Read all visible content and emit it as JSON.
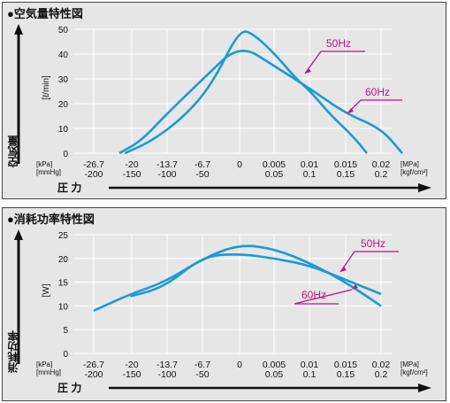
{
  "chart_data": [
    {
      "type": "line",
      "title": "●空気量特性図",
      "ylabel": "空気量",
      "yunit": "[ℓ/min]",
      "xlabel": "圧 力",
      "x_units": [
        "[kPa]",
        "[mmHg]"
      ],
      "x_units_right": [
        "[MPa]",
        "[kgf/cm²]"
      ],
      "x_ticks_row1": [
        "-26.7",
        "-20",
        "-13.7",
        "-6.7",
        "0",
        "0.005",
        "0.01",
        "0.015",
        "0.02"
      ],
      "x_ticks_row2": [
        "-200",
        "-150",
        "-100",
        "-50",
        "",
        "0.05",
        "0.1",
        "0.15",
        "0.2"
      ],
      "y_ticks": [
        "0",
        "10",
        "20",
        "30",
        "40",
        "50"
      ],
      "ylim": [
        0,
        50
      ],
      "xlim": [
        -26.7,
        0.02
      ],
      "series": [
        {
          "name": "50Hz",
          "color": "#1a9ad6",
          "points": [
            [
              -21,
              0
            ],
            [
              -16,
              5
            ],
            [
              -10,
              15
            ],
            [
              -5,
              28
            ],
            [
              0,
              50
            ],
            [
              0.002,
              48
            ],
            [
              0.005,
              40
            ],
            [
              0.008,
              30
            ],
            [
              0.01,
              25
            ],
            [
              0.013,
              15
            ],
            [
              0.016,
              7
            ],
            [
              0.018,
              0
            ]
          ]
        },
        {
          "name": "60Hz",
          "color": "#1a9ad6",
          "points": [
            [
              -22,
              0
            ],
            [
              -18,
              5
            ],
            [
              -13.7,
              15
            ],
            [
              -6.7,
              30
            ],
            [
              0,
              44
            ],
            [
              0.005,
              35
            ],
            [
              0.01,
              26
            ],
            [
              0.015,
              16
            ],
            [
              0.02,
              10
            ],
            [
              0.023,
              0
            ]
          ]
        }
      ]
    },
    {
      "type": "line",
      "title": "●消耗功率特性図",
      "ylabel": "消耗功率",
      "yunit": "[W]",
      "xlabel": "圧 力",
      "x_units": [
        "[kPa]",
        "[mmHg]"
      ],
      "x_units_right": [
        "[MPa]",
        "[kgf/cm²]"
      ],
      "x_ticks_row1": [
        "-26.7",
        "-20",
        "-13.7",
        "-6.7",
        "0",
        "0.005",
        "0.01",
        "0.015",
        "0.02"
      ],
      "x_ticks_row2": [
        "-200",
        "-150",
        "-100",
        "-50",
        "",
        "0.05",
        "0.1",
        "0.15",
        "0.2"
      ],
      "y_ticks": [
        "0",
        "5",
        "10",
        "15",
        "20",
        "25"
      ],
      "ylim": [
        0,
        25
      ],
      "series": [
        {
          "name": "50Hz",
          "color": "#1a9ad6",
          "points": [
            [
              -26.7,
              9
            ],
            [
              -20,
              12.5
            ],
            [
              -13.7,
              15
            ],
            [
              -6.7,
              20
            ],
            [
              0,
              23
            ],
            [
              0.005,
              22
            ],
            [
              0.01,
              19
            ],
            [
              0.015,
              15
            ],
            [
              0.02,
              10
            ]
          ]
        },
        {
          "name": "60Hz",
          "color": "#1a9ad6",
          "points": [
            [
              -20,
              12
            ],
            [
              -13.7,
              14
            ],
            [
              -6.7,
              20.5
            ],
            [
              0,
              21
            ],
            [
              0.005,
              20
            ],
            [
              0.01,
              18.5
            ],
            [
              0.015,
              15.5
            ],
            [
              0.02,
              12.5
            ]
          ]
        }
      ]
    }
  ]
}
